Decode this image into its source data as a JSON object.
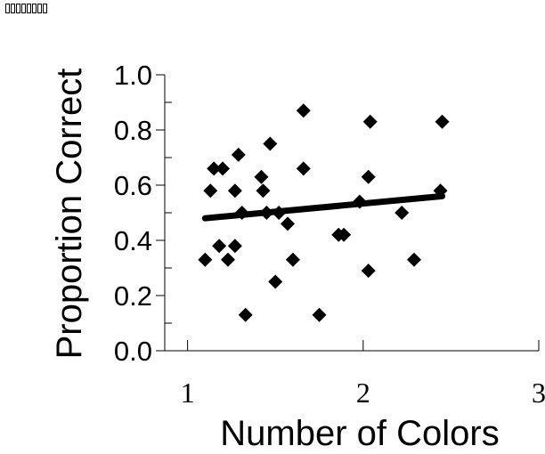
{
  "header": {
    "glyph_count": 8
  },
  "chart_data": {
    "type": "scatter",
    "title": "",
    "xlabel": "Number of Colors",
    "ylabel": "Proportion Correct",
    "xlim": [
      0.87,
      3.0
    ],
    "ylim": [
      0.0,
      1.0
    ],
    "x_ticks": [
      1,
      2,
      3
    ],
    "y_ticks": [
      0.0,
      0.2,
      0.4,
      0.6,
      0.8,
      1.0
    ],
    "y_tick_labels": [
      "0.0",
      "0.2",
      "0.4",
      "0.6",
      "0.8",
      "1.0"
    ],
    "x_tick_labels": [
      "1",
      "2",
      "3"
    ],
    "grid": false,
    "legend": "none",
    "series": [
      {
        "points": [
          [
            1.1,
            0.33
          ],
          [
            1.13,
            0.58
          ],
          [
            1.15,
            0.66
          ],
          [
            1.18,
            0.38
          ],
          [
            1.2,
            0.66
          ],
          [
            1.23,
            0.33
          ],
          [
            1.27,
            0.38
          ],
          [
            1.27,
            0.58
          ],
          [
            1.29,
            0.71
          ],
          [
            1.31,
            0.5
          ],
          [
            1.33,
            0.13
          ],
          [
            1.42,
            0.63
          ],
          [
            1.43,
            0.58
          ],
          [
            1.45,
            0.5
          ],
          [
            1.47,
            0.75
          ],
          [
            1.5,
            0.25
          ],
          [
            1.52,
            0.5
          ],
          [
            1.57,
            0.46
          ],
          [
            1.6,
            0.33
          ],
          [
            1.66,
            0.66
          ],
          [
            1.66,
            0.87
          ],
          [
            1.75,
            0.13
          ],
          [
            1.86,
            0.42
          ],
          [
            1.89,
            0.42
          ],
          [
            1.98,
            0.54
          ],
          [
            2.03,
            0.29
          ],
          [
            2.03,
            0.63
          ],
          [
            2.04,
            0.83
          ],
          [
            2.22,
            0.5
          ],
          [
            2.29,
            0.33
          ],
          [
            2.44,
            0.58
          ],
          [
            2.45,
            0.83
          ]
        ]
      }
    ],
    "trendline": {
      "x": [
        1.1,
        2.45
      ],
      "y": [
        0.48,
        0.56
      ]
    }
  }
}
